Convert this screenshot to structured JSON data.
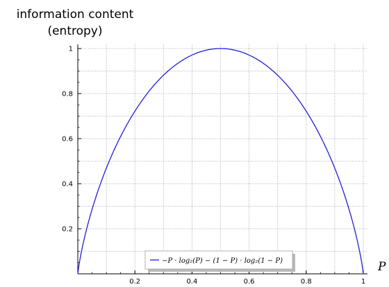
{
  "chart_data": {
    "type": "line",
    "title_line1": "information content",
    "title_line2": "(entropy)",
    "xlabel": "P",
    "ylabel": "",
    "xlim": [
      0,
      1
    ],
    "ylim": [
      0,
      1
    ],
    "x_major_ticks": [
      0.2,
      0.4,
      0.6,
      0.8,
      1
    ],
    "x_tick_labels": [
      "0.2",
      "0.4",
      "0.6",
      "0.8",
      "1"
    ],
    "y_major_ticks": [
      0.2,
      0.4,
      0.6,
      0.8,
      1
    ],
    "y_tick_labels": [
      "0.2",
      "0.4",
      "0.6",
      "0.8",
      "1"
    ],
    "grid": true,
    "legend_position": "bottom-center",
    "series": [
      {
        "name": "−P · log₂(P) − (1 − P) · log₂(1 − P)",
        "function": "binary_entropy",
        "color": "#1f1fd6",
        "key_points": [
          {
            "x": 0,
            "y": 0
          },
          {
            "x": 0.1,
            "y": 0.469
          },
          {
            "x": 0.2,
            "y": 0.722
          },
          {
            "x": 0.3,
            "y": 0.881
          },
          {
            "x": 0.4,
            "y": 0.971
          },
          {
            "x": 0.5,
            "y": 1
          },
          {
            "x": 0.6,
            "y": 0.971
          },
          {
            "x": 0.7,
            "y": 0.881
          },
          {
            "x": 0.8,
            "y": 0.722
          },
          {
            "x": 0.9,
            "y": 0.469
          },
          {
            "x": 1,
            "y": 0
          }
        ]
      }
    ]
  },
  "colors": {
    "curve": "#1f1fd6",
    "grid": "#9a9a9a",
    "axis": "#000000"
  }
}
